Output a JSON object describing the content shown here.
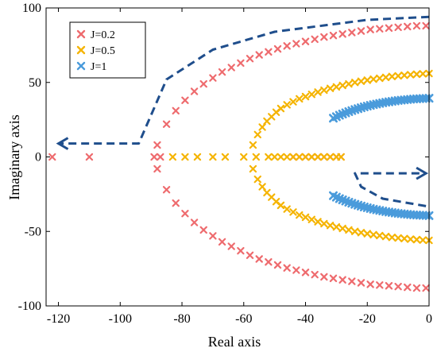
{
  "chart_data": {
    "type": "scatter",
    "title": "",
    "xlabel": "Real axis",
    "ylabel": "Imaginary axis",
    "xlim": [
      -124,
      0
    ],
    "ylim": [
      -100,
      100
    ],
    "xticks": [
      -120,
      -100,
      -80,
      -60,
      -40,
      -20,
      0
    ],
    "yticks": [
      -100,
      -50,
      0,
      50,
      100
    ],
    "grid": false,
    "legend_position": "top-left",
    "colors": {
      "J0_2": "#EE6B6E",
      "J0_5": "#F5B400",
      "J1": "#4A9BDB",
      "arrow": "#1F4E8C"
    },
    "series": [
      {
        "name": "J=0.2",
        "marker": "x",
        "real_only": [
          -122,
          -110,
          -89,
          -87,
          -44,
          -42,
          -40,
          -38,
          -36,
          -34,
          -32,
          -30,
          -28.5
        ],
        "branch_x": [
          -88,
          -85,
          -82,
          -79,
          -76,
          -73,
          -70,
          -67,
          -64,
          -61,
          -58,
          -55,
          -52,
          -49,
          -46,
          -43,
          -40,
          -37,
          -34,
          -31,
          -28,
          -25,
          -22,
          -19,
          -16,
          -13,
          -10,
          -7,
          -4,
          -1
        ],
        "branch_y": [
          8,
          22,
          31,
          38,
          44,
          49,
          53,
          57,
          60,
          63,
          66,
          68.5,
          70.5,
          72.5,
          74.5,
          76,
          77.5,
          79,
          80.5,
          81.5,
          82.5,
          83.5,
          84.5,
          85.5,
          86,
          86.5,
          87,
          87.5,
          88,
          88
        ],
        "symmetric": true
      },
      {
        "name": "J=0.5",
        "marker": "x",
        "real_only": [
          -83,
          -79,
          -75,
          -70,
          -66,
          -60,
          -56,
          -52,
          -50,
          -48,
          -46,
          -44,
          -42,
          -40,
          -38,
          -36,
          -34,
          -32,
          -30,
          -28.5
        ],
        "branch_x": [
          -57,
          -55.5,
          -54,
          -52.5,
          -51,
          -49.5,
          -48,
          -46,
          -44,
          -42,
          -40,
          -38,
          -36,
          -34,
          -32,
          -30,
          -28,
          -26,
          -24,
          -22,
          -20,
          -18,
          -16,
          -14,
          -12,
          -10,
          -8,
          -6,
          -4,
          -2,
          0
        ],
        "branch_y": [
          8,
          15,
          20,
          24,
          27,
          30,
          32.5,
          35,
          37,
          39,
          40.5,
          42,
          43.5,
          44.8,
          46,
          47,
          48,
          49,
          50,
          50.8,
          51.5,
          52.2,
          52.8,
          53.4,
          54,
          54.4,
          54.8,
          55.2,
          55.5,
          55.8,
          56
        ],
        "symmetric": true
      },
      {
        "name": "J=1",
        "marker": "x",
        "real_only": [],
        "branch_x": [
          -31,
          -30,
          -29,
          -28,
          -27,
          -26,
          -25,
          -24,
          -23,
          -22,
          -21,
          -20,
          -19,
          -18,
          -17,
          -16,
          -15,
          -14,
          -13,
          -12,
          -11,
          -10,
          -9,
          -8,
          -7,
          -6,
          -5,
          -4,
          -3,
          -2,
          -1,
          0
        ],
        "branch_y": [
          26,
          27,
          28,
          28.8,
          29.6,
          30.4,
          31.1,
          31.8,
          32.4,
          33,
          33.6,
          34.1,
          34.6,
          35.1,
          35.5,
          35.9,
          36.3,
          36.7,
          37,
          37.3,
          37.6,
          37.9,
          38.1,
          38.3,
          38.5,
          38.7,
          38.9,
          39,
          39.1,
          39.2,
          39.3,
          39.4
        ],
        "symmetric": true
      }
    ],
    "arrows": [
      {
        "name": "upper-left-arrow",
        "points": [
          [
            0,
            94
          ],
          [
            -20,
            92
          ],
          [
            -50,
            84
          ],
          [
            -70,
            72
          ],
          [
            -85,
            52
          ],
          [
            -94,
            9
          ],
          [
            -120,
            9
          ]
        ]
      },
      {
        "name": "lower-right-arrow",
        "points": [
          [
            -1,
            -33
          ],
          [
            -15,
            -28
          ],
          [
            -22,
            -20
          ],
          [
            -24,
            -11
          ],
          [
            -1,
            -11
          ]
        ]
      }
    ]
  }
}
